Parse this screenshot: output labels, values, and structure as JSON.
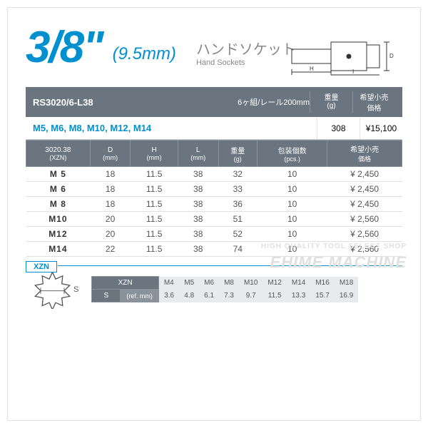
{
  "title": {
    "size": "3/8\"",
    "mm": "(9.5mm)",
    "jp": "ハンドソケット",
    "en": "Hand Sockets"
  },
  "header": {
    "code": "RS3020/6-L38",
    "desc": "6ヶ組/レール200mm",
    "col1": {
      "l1": "重量",
      "l2": "(g)"
    },
    "col2": {
      "l1": "希望小売",
      "l2": "価格"
    }
  },
  "set": {
    "sizes": "M5, M6, M8, M10, M12, M14",
    "weight": "308",
    "price": "¥15,100"
  },
  "specHead": {
    "c0a": "3020.38",
    "c0b": "(XZN)",
    "c1a": "D",
    "c1b": "(mm)",
    "c2a": "H",
    "c2b": "(mm)",
    "c3a": "L",
    "c3b": "(mm)",
    "c4a": "重量",
    "c4b": "(g)",
    "c5a": "包装個数",
    "c5b": "(pcs.)",
    "c6a": "希望小売",
    "c6b": "価格"
  },
  "rows": [
    {
      "n": "M  5",
      "d": "18",
      "h": "11.5",
      "l": "38",
      "w": "32",
      "p": "10",
      "pr": "¥ 2,450"
    },
    {
      "n": "M  6",
      "d": "18",
      "h": "11.5",
      "l": "38",
      "w": "33",
      "p": "10",
      "pr": "¥ 2,450"
    },
    {
      "n": "M  8",
      "d": "18",
      "h": "11.5",
      "l": "38",
      "w": "36",
      "p": "10",
      "pr": "¥ 2,450"
    },
    {
      "n": "M10",
      "d": "20",
      "h": "11.5",
      "l": "38",
      "w": "51",
      "p": "10",
      "pr": "¥ 2,560"
    },
    {
      "n": "M12",
      "d": "20",
      "h": "11.5",
      "l": "38",
      "w": "52",
      "p": "10",
      "pr": "¥ 2,560"
    },
    {
      "n": "M14",
      "d": "22",
      "h": "11.5",
      "l": "38",
      "w": "74",
      "p": "10",
      "pr": "¥ 2,560"
    }
  ],
  "xzn": {
    "label": "XZN",
    "s": "S",
    "h1": "XZN",
    "h2": "S",
    "h2b": "(ref. mm)",
    "cols": [
      "M4",
      "M5",
      "M6",
      "M8",
      "M10",
      "M12",
      "M14",
      "M16",
      "M18"
    ],
    "vals": [
      "3.6",
      "4.8",
      "6.1",
      "7.3",
      "9.7",
      "11.5",
      "13.3",
      "15.7",
      "16.9"
    ]
  },
  "wm": {
    "l1": "HIGH QUALITY TOOL SELECT SHOP",
    "l2": "EHIME MACHINE"
  },
  "colors": {
    "accent": "#0090d0",
    "headerbg": "#6a7580"
  }
}
